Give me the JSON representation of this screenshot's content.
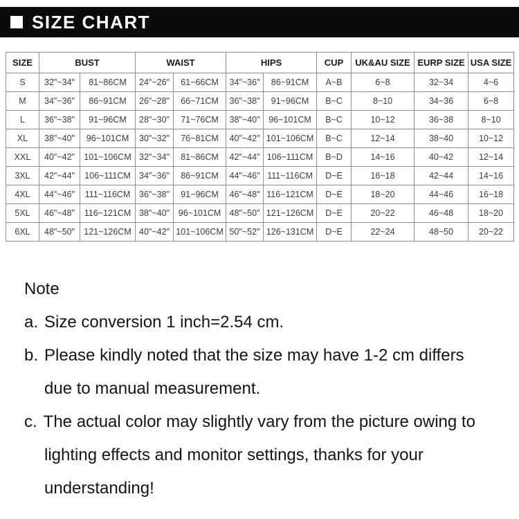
{
  "header": {
    "title": "SIZE CHART",
    "bar_color": "#0a0a0a",
    "text_color": "#ffffff",
    "bullet_icon": "white-square"
  },
  "table": {
    "border_color": "#8f8f8f",
    "columns": {
      "size": "SIZE",
      "bust": "BUST",
      "waist": "WAIST",
      "hips": "HIPS",
      "cup": "CUP",
      "uk_au": "UK&AU SIZE",
      "eurp": "EURP SIZE",
      "usa": "USA SIZE"
    },
    "rows": [
      [
        "S",
        "32\"~34\"",
        "81~86CM",
        "24\"~26\"",
        "61~66CM",
        "34\"~36\"",
        "86~91CM",
        "A~B",
        "6~8",
        "32~34",
        "4~6"
      ],
      [
        "M",
        "34\"~36\"",
        "86~91CM",
        "26\"~28\"",
        "66~71CM",
        "36\"~38\"",
        "91~96CM",
        "B~C",
        "8~10",
        "34~36",
        "6~8"
      ],
      [
        "L",
        "36\"~38\"",
        "91~96CM",
        "28\"~30\"",
        "71~76CM",
        "38\"~40\"",
        "96~101CM",
        "B~C",
        "10~12",
        "36~38",
        "8~10"
      ],
      [
        "XL",
        "38\"~40\"",
        "96~101CM",
        "30\"~32\"",
        "76~81CM",
        "40\"~42\"",
        "101~106CM",
        "B~C",
        "12~14",
        "38~40",
        "10~12"
      ],
      [
        "XXL",
        "40\"~42\"",
        "101~106CM",
        "32\"~34\"",
        "81~86CM",
        "42\"~44\"",
        "106~111CM",
        "B~D",
        "14~16",
        "40~42",
        "12~14"
      ],
      [
        "3XL",
        "42\"~44\"",
        "106~111CM",
        "34\"~36\"",
        "86~91CM",
        "44\"~46\"",
        "111~116CM",
        "D~E",
        "16~18",
        "42~44",
        "14~16"
      ],
      [
        "4XL",
        "44\"~46\"",
        "111~116CM",
        "36\"~38\"",
        "91~96CM",
        "46\"~48\"",
        "116~121CM",
        "D~E",
        "18~20",
        "44~46",
        "16~18"
      ],
      [
        "5XL",
        "46\"~48\"",
        "116~121CM",
        "38\"~40\"",
        "96~101CM",
        "48\"~50\"",
        "121~126CM",
        "D~E",
        "20~22",
        "46~48",
        "18~20"
      ],
      [
        "6XL",
        "48\"~50\"",
        "121~126CM",
        "40\"~42\"",
        "101~106CM",
        "50\"~52\"",
        "126~131CM",
        "D~E",
        "22~24",
        "48~50",
        "20~22"
      ]
    ]
  },
  "notes": {
    "title": "Note",
    "items": [
      {
        "prefix": "a.",
        "lines": [
          "Size conversion 1 inch=2.54 cm."
        ]
      },
      {
        "prefix": "b.",
        "lines": [
          "Please kindly noted that the size may have 1-2 cm differs",
          "due to manual measurement."
        ]
      },
      {
        "prefix": "c.",
        "lines": [
          "The actual color may slightly vary from the picture owing to",
          "lighting effects and monitor settings, thanks for your",
          "understanding!"
        ]
      }
    ]
  }
}
